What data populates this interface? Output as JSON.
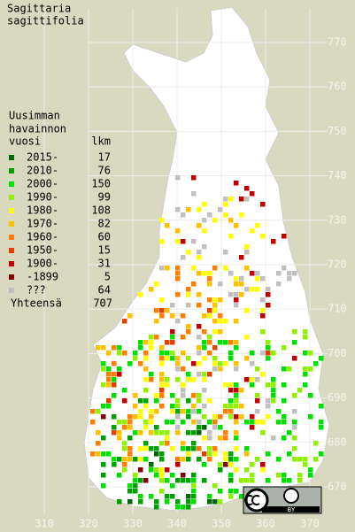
{
  "title": [
    "Sagittaria",
    "sagittifolia"
  ],
  "legend": {
    "header": [
      "Uusimman",
      "havainnon",
      "vuosi"
    ],
    "count_header": "lkm",
    "items": [
      {
        "label": "2015-",
        "count": 17,
        "color": "#006800"
      },
      {
        "label": "2010-",
        "count": 76,
        "color": "#00a000"
      },
      {
        "label": "2000-",
        "count": 150,
        "color": "#00e000"
      },
      {
        "label": "1990-",
        "count": 99,
        "color": "#90f000"
      },
      {
        "label": "1980-",
        "count": 108,
        "color": "#ffff00"
      },
      {
        "label": "1970-",
        "count": 82,
        "color": "#ffc000"
      },
      {
        "label": "1960-",
        "count": 60,
        "color": "#ff8000"
      },
      {
        "label": "1950-",
        "count": 15,
        "color": "#e04000"
      },
      {
        "label": "1900-",
        "count": 31,
        "color": "#c00000"
      },
      {
        "label": "-1899",
        "count": 5,
        "color": "#800000"
      },
      {
        "label": "???",
        "count": 64,
        "color": "#c0c0c0"
      }
    ],
    "total_label": "Yhteensä",
    "total": 707
  },
  "grid": {
    "y_labels": [
      770,
      760,
      750,
      740,
      730,
      720,
      710,
      700,
      690,
      680,
      670
    ],
    "x_labels": [
      310,
      320,
      330,
      340,
      350,
      360,
      370
    ]
  },
  "license_badge": "BY"
}
